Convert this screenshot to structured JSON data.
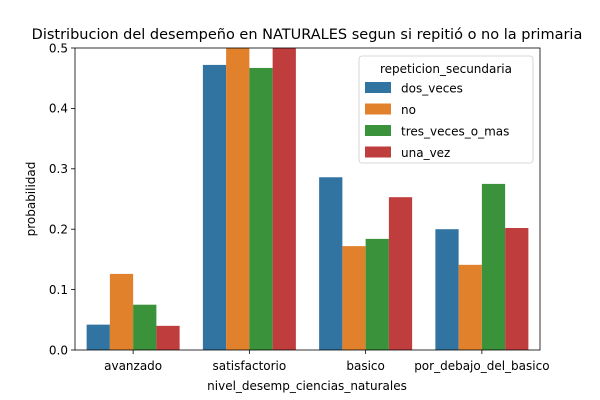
{
  "chart_data": {
    "type": "bar",
    "title": "Distribucion del desempeño en NATURALES segun si repitió o no la primaria",
    "xlabel": "nivel_desemp_ciencias_naturales",
    "ylabel": "probabilidad",
    "ylim": [
      0,
      0.5
    ],
    "yticks": [
      "0.0",
      "0.1",
      "0.2",
      "0.3",
      "0.4",
      "0.5"
    ],
    "categories": [
      "avanzado",
      "satisfactorio",
      "basico",
      "por_debajo_del_basico"
    ],
    "legend": {
      "title": "repeticion_secundaria",
      "placement": "top-right"
    },
    "grid": false,
    "series": [
      {
        "name": "dos_veces",
        "color": "#3274a1",
        "values": [
          0.042,
          0.472,
          0.286,
          0.2
        ]
      },
      {
        "name": "no",
        "color": "#e1812c",
        "values": [
          0.126,
          0.502,
          0.172,
          0.141
        ]
      },
      {
        "name": "tres_veces_o_mas",
        "color": "#3a923a",
        "values": [
          0.075,
          0.467,
          0.184,
          0.275
        ]
      },
      {
        "name": "una_vez",
        "color": "#c03d3e",
        "values": [
          0.04,
          0.506,
          0.253,
          0.202
        ]
      }
    ]
  }
}
